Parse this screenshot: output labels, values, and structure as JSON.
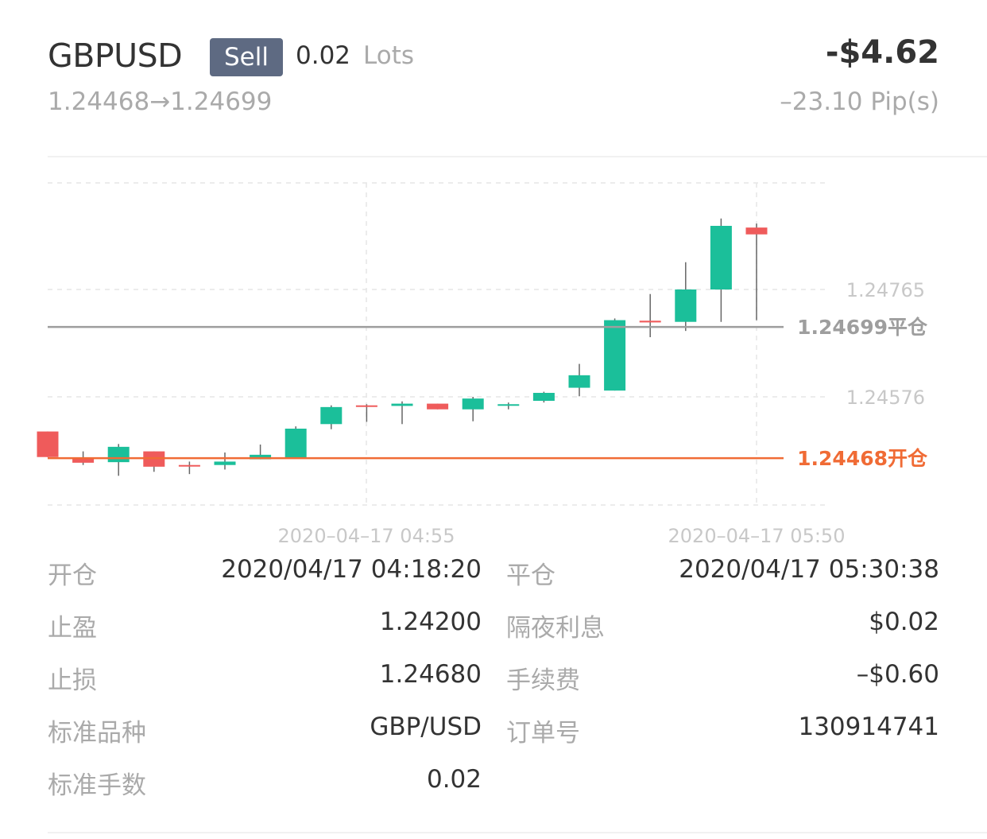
{
  "header": {
    "symbol": "GBPUSD",
    "side_badge": "Sell",
    "lots_value": "0.02",
    "lots_label": "Lots",
    "profit": "-$4.62",
    "price_route": "1.24468→1.24699",
    "pips": "–23.10 Pip(s)"
  },
  "chart_data": {
    "type": "candlestick",
    "y_ticks": [
      "1.24765",
      "1.24576"
    ],
    "x_ticks": [
      "2020–04–17 04:55",
      "2020–04–17 05:50"
    ],
    "close_line": {
      "value": 1.24699,
      "label": "1.24699平仓",
      "color": "#9e9e9e"
    },
    "open_line": {
      "value": 1.24468,
      "label": "1.24468开仓",
      "color": "#f06b35"
    },
    "up_color": "#1bbf9a",
    "down_color": "#ef5b5b",
    "candles": [
      {
        "o": 1.24515,
        "h": 1.24515,
        "c": 1.2447,
        "l": 1.2447
      },
      {
        "o": 1.24468,
        "h": 1.2448,
        "c": 1.2446,
        "l": 1.24456
      },
      {
        "o": 1.24461,
        "h": 1.24493,
        "c": 1.24488,
        "l": 1.24437
      },
      {
        "o": 1.2448,
        "h": 1.2448,
        "c": 1.24453,
        "l": 1.24444
      },
      {
        "o": 1.24456,
        "h": 1.24462,
        "c": 1.24454,
        "l": 1.2444
      },
      {
        "o": 1.24456,
        "h": 1.24478,
        "c": 1.24462,
        "l": 1.24448
      },
      {
        "o": 1.24466,
        "h": 1.24492,
        "c": 1.24474,
        "l": 1.24466
      },
      {
        "o": 1.24468,
        "h": 1.24524,
        "c": 1.2452,
        "l": 1.24468
      },
      {
        "o": 1.24528,
        "h": 1.24561,
        "c": 1.24558,
        "l": 1.24519
      },
      {
        "o": 1.24561,
        "h": 1.24563,
        "c": 1.2456,
        "l": 1.24532
      },
      {
        "o": 1.2456,
        "h": 1.24568,
        "c": 1.24564,
        "l": 1.24528
      },
      {
        "o": 1.24564,
        "h": 1.24564,
        "c": 1.24554,
        "l": 1.24554
      },
      {
        "o": 1.24554,
        "h": 1.24576,
        "c": 1.24573,
        "l": 1.24533
      },
      {
        "o": 1.24562,
        "h": 1.24566,
        "c": 1.24563,
        "l": 1.24554
      },
      {
        "o": 1.24569,
        "h": 1.24585,
        "c": 1.24583,
        "l": 1.24566
      },
      {
        "o": 1.24592,
        "h": 1.24634,
        "c": 1.24614,
        "l": 1.24577
      },
      {
        "o": 1.24587,
        "h": 1.24714,
        "c": 1.24711,
        "l": 1.24587
      },
      {
        "o": 1.2471,
        "h": 1.24757,
        "c": 1.24707,
        "l": 1.24681
      },
      {
        "o": 1.24708,
        "h": 1.24813,
        "c": 1.24765,
        "l": 1.24692
      },
      {
        "o": 1.24765,
        "h": 1.2489,
        "c": 1.24877,
        "l": 1.24708
      },
      {
        "o": 1.24874,
        "h": 1.24881,
        "c": 1.24862,
        "l": 1.24711
      }
    ]
  },
  "details": {
    "open_time_label": "开仓",
    "open_time_value": "2020/04/17 04:18:20",
    "close_time_label": "平仓",
    "close_time_value": "2020/04/17 05:30:38",
    "take_profit_label": "止盈",
    "take_profit_value": "1.24200",
    "swap_label": "隔夜利息",
    "swap_value": "$0.02",
    "stop_loss_label": "止损",
    "stop_loss_value": "1.24680",
    "commission_label": "手续费",
    "commission_value": "–$0.60",
    "instrument_label": "标准品种",
    "instrument_value": "GBP/USD",
    "order_no_label": "订单号",
    "order_no_value": "130914741",
    "std_lots_label": "标准手数",
    "std_lots_value": "0.02"
  }
}
